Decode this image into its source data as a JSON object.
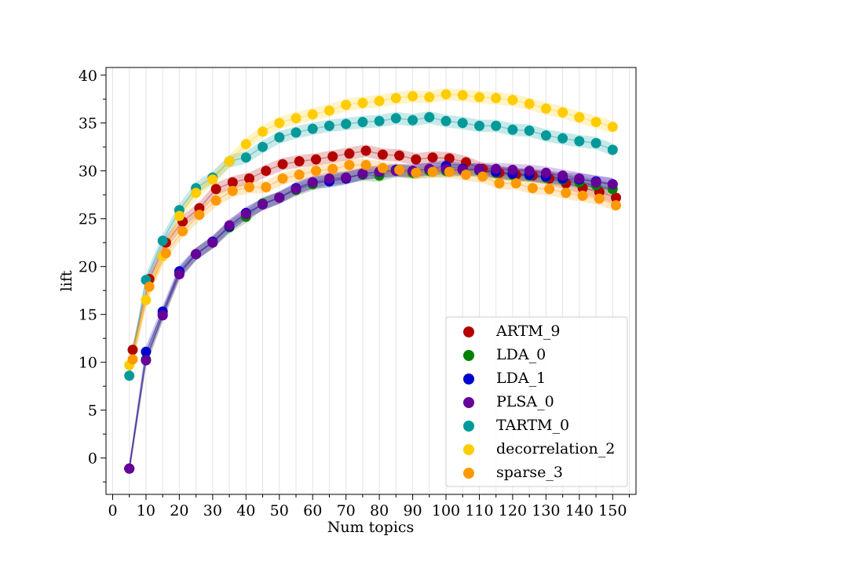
{
  "chart_data": {
    "type": "scatter",
    "title": "",
    "xlabel": "Num topics",
    "ylabel": "lift",
    "xlim": [
      -2,
      157
    ],
    "ylim": [
      -3.8,
      40.8
    ],
    "xticks": [
      0,
      10,
      20,
      30,
      40,
      50,
      60,
      70,
      80,
      90,
      100,
      110,
      120,
      130,
      140,
      150
    ],
    "yticks": [
      0,
      5,
      10,
      15,
      20,
      25,
      30,
      35,
      40
    ],
    "grid": "vertical-minor",
    "legend_position": "lower-right",
    "series": [
      {
        "name": "ARTM_9",
        "color": "#b30000",
        "x": [
          6,
          11,
          16,
          21,
          26,
          31,
          36,
          41,
          46,
          51,
          56,
          61,
          66,
          71,
          76,
          81,
          86,
          91,
          96,
          101,
          106,
          111,
          116,
          121,
          126,
          131,
          136,
          141,
          146,
          151
        ],
        "y": [
          11.3,
          18.7,
          22.5,
          24.7,
          26.1,
          28.1,
          28.8,
          29.2,
          30.0,
          30.7,
          31.0,
          31.2,
          31.5,
          31.8,
          32.1,
          31.7,
          31.6,
          31.2,
          31.4,
          31.3,
          30.9,
          30.2,
          29.8,
          29.6,
          29.5,
          29.2,
          28.7,
          28.2,
          27.8,
          27.2
        ]
      },
      {
        "name": "LDA_0",
        "color": "#008000",
        "x": [
          5,
          10,
          15,
          20,
          25,
          30,
          35,
          40,
          45,
          50,
          55,
          60,
          65,
          70,
          75,
          80,
          85,
          90,
          95,
          100,
          105,
          110,
          115,
          120,
          125,
          130,
          135,
          140,
          145,
          150
        ],
        "y": [
          -1.1,
          10.3,
          15.0,
          19.3,
          21.3,
          22.5,
          24.1,
          25.2,
          26.6,
          27.2,
          28.0,
          28.6,
          29.0,
          29.3,
          29.6,
          29.5,
          30.0,
          29.8,
          30.0,
          30.0,
          30.1,
          30.0,
          29.8,
          29.6,
          29.5,
          29.3,
          29.1,
          28.8,
          28.5,
          28.1
        ]
      },
      {
        "name": "LDA_1",
        "color": "#0000cc",
        "x": [
          5,
          10,
          15,
          20,
          25,
          30,
          35,
          40,
          45,
          50,
          55,
          60,
          65,
          70,
          75,
          80,
          85,
          90,
          95,
          100,
          105,
          110,
          115,
          120,
          125,
          130,
          135,
          140,
          145,
          150
        ],
        "y": [
          -1.1,
          11.1,
          15.3,
          19.5,
          21.3,
          22.6,
          24.2,
          25.6,
          26.5,
          27.2,
          28.2,
          28.8,
          28.9,
          29.2,
          29.7,
          29.9,
          30.1,
          30.0,
          30.2,
          30.5,
          30.2,
          30.1,
          29.9,
          29.7,
          29.6,
          29.4,
          29.2,
          29.1,
          28.9,
          28.6
        ]
      },
      {
        "name": "PLSA_0",
        "color": "#660099",
        "x": [
          5,
          10,
          15,
          20,
          25,
          30,
          35,
          40,
          45,
          50,
          55,
          60,
          65,
          70,
          75,
          80,
          85,
          90,
          95,
          100,
          105,
          110,
          115,
          120,
          125,
          130,
          135,
          140,
          145,
          150
        ],
        "y": [
          -1.1,
          10.2,
          14.9,
          19.2,
          21.3,
          22.5,
          24.3,
          25.5,
          26.5,
          27.2,
          28.1,
          28.8,
          29.2,
          29.3,
          29.7,
          29.9,
          30.0,
          30.0,
          30.2,
          30.2,
          30.1,
          30.2,
          30.2,
          30.1,
          30.0,
          29.8,
          29.5,
          29.2,
          28.8,
          28.6
        ]
      },
      {
        "name": "TARTM_0",
        "color": "#009999",
        "x": [
          5,
          10,
          15,
          20,
          25,
          30,
          35,
          40,
          45,
          50,
          55,
          60,
          65,
          70,
          75,
          80,
          85,
          90,
          95,
          100,
          105,
          110,
          115,
          120,
          125,
          130,
          135,
          140,
          145,
          150
        ],
        "y": [
          8.6,
          18.6,
          22.7,
          25.9,
          28.2,
          29.3,
          31.0,
          31.4,
          32.5,
          33.5,
          34.0,
          34.4,
          34.7,
          34.9,
          35.1,
          35.2,
          35.5,
          35.3,
          35.6,
          35.2,
          35.0,
          34.7,
          34.7,
          34.3,
          34.2,
          33.7,
          33.4,
          33.1,
          32.9,
          32.2
        ]
      },
      {
        "name": "decorrelation_2",
        "color": "#ffcc00",
        "x": [
          5,
          10,
          15,
          20,
          25,
          30,
          35,
          40,
          45,
          50,
          55,
          60,
          65,
          70,
          75,
          80,
          85,
          90,
          95,
          100,
          105,
          110,
          115,
          120,
          125,
          130,
          135,
          140,
          145,
          150
        ],
        "y": [
          9.7,
          16.5,
          21.1,
          25.3,
          27.7,
          29.1,
          31.0,
          32.8,
          34.1,
          35.0,
          35.5,
          35.9,
          36.3,
          36.9,
          37.1,
          37.3,
          37.6,
          37.8,
          37.7,
          38.0,
          37.9,
          37.7,
          37.6,
          37.4,
          37.0,
          36.5,
          36.1,
          35.6,
          35.1,
          34.6
        ]
      },
      {
        "name": "sparse_3",
        "color": "#ff9900",
        "x": [
          6,
          11,
          16,
          21,
          26,
          31,
          36,
          41,
          46,
          51,
          56,
          61,
          66,
          71,
          76,
          81,
          86,
          91,
          96,
          101,
          106,
          111,
          116,
          121,
          126,
          131,
          136,
          141,
          146,
          151
        ],
        "y": [
          10.3,
          17.9,
          21.4,
          23.7,
          25.4,
          26.9,
          27.9,
          28.3,
          28.3,
          29.2,
          29.6,
          30.0,
          30.2,
          30.6,
          30.6,
          30.3,
          30.1,
          29.8,
          29.9,
          29.9,
          29.6,
          29.4,
          28.7,
          28.7,
          28.2,
          28.1,
          27.7,
          27.4,
          27.1,
          26.4
        ]
      }
    ]
  }
}
